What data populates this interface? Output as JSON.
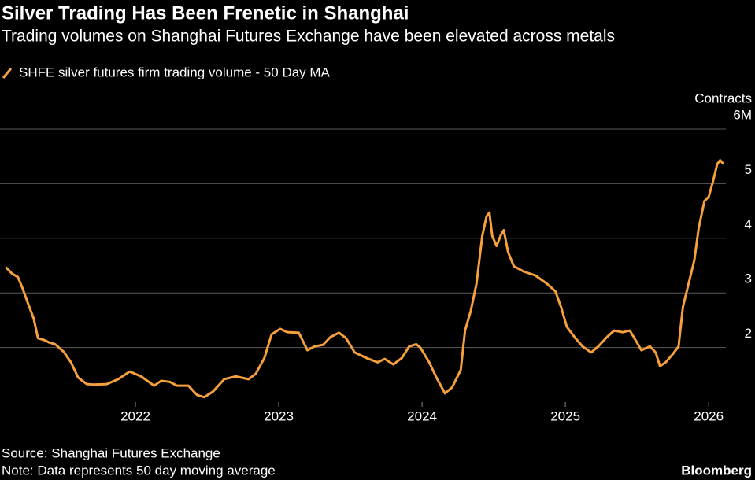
{
  "chart_data": {
    "type": "line",
    "title": "Silver Trading Has Been Frenetic in Shanghai",
    "subtitle": "Trading volumes on Shanghai Futures Exchange have been elevated across metals",
    "y_axis_label": "Contracts",
    "source": "Source: Shanghai Futures Exchange",
    "note": "Note: Data represents 50 day moving average",
    "brand": "Bloomberg",
    "x": [
      2021.1,
      2021.14,
      2021.18,
      2021.21,
      2021.25,
      2021.29,
      2021.32,
      2021.36,
      2021.4,
      2021.44,
      2021.5,
      2021.55,
      2021.6,
      2021.66,
      2021.71,
      2021.8,
      2021.88,
      2021.96,
      2022.04,
      2022.13,
      2022.18,
      2022.24,
      2022.29,
      2022.37,
      2022.43,
      2022.48,
      2022.54,
      2022.62,
      2022.7,
      2022.79,
      2022.84,
      2022.9,
      2022.95,
      2023.01,
      2023.06,
      2023.14,
      2023.2,
      2023.25,
      2023.31,
      2023.36,
      2023.42,
      2023.47,
      2023.53,
      2023.61,
      2023.69,
      2023.74,
      2023.8,
      2023.86,
      2023.91,
      2023.96,
      2023.99,
      2024.05,
      2024.1,
      2024.16,
      2024.21,
      2024.27,
      2024.3,
      2024.34,
      2024.38,
      2024.42,
      2024.45,
      2024.47,
      2024.49,
      2024.52,
      2024.55,
      2024.57,
      2024.6,
      2024.64,
      2024.71,
      2024.79,
      2024.87,
      2024.93,
      2024.97,
      2025.01,
      2025.07,
      2025.12,
      2025.18,
      2025.23,
      2025.29,
      2025.34,
      2025.4,
      2025.45,
      2025.5,
      2025.53,
      2025.59,
      2025.63,
      2025.66,
      2025.7,
      2025.75,
      2025.79,
      2025.82,
      2025.86,
      2025.9,
      2025.93,
      2025.97,
      2026.0,
      2026.03,
      2026.06,
      2026.08,
      2026.1
    ],
    "series": [
      {
        "name": "SHFE silver futures firm trading volume - 50 Day MA",
        "color": "#f5a03c",
        "values": [
          3.46,
          3.35,
          3.29,
          3.1,
          2.81,
          2.53,
          2.17,
          2.14,
          2.09,
          2.06,
          1.92,
          1.73,
          1.45,
          1.33,
          1.32,
          1.33,
          1.42,
          1.56,
          1.47,
          1.3,
          1.39,
          1.37,
          1.3,
          1.3,
          1.13,
          1.09,
          1.19,
          1.42,
          1.47,
          1.42,
          1.52,
          1.81,
          2.24,
          2.34,
          2.28,
          2.27,
          1.95,
          2.02,
          2.05,
          2.19,
          2.27,
          2.17,
          1.91,
          1.81,
          1.73,
          1.79,
          1.69,
          1.81,
          2.02,
          2.06,
          1.99,
          1.73,
          1.45,
          1.16,
          1.27,
          1.59,
          2.31,
          2.67,
          3.17,
          4.04,
          4.4,
          4.47,
          4.04,
          3.86,
          4.06,
          4.15,
          3.75,
          3.49,
          3.39,
          3.32,
          3.17,
          3.03,
          2.74,
          2.38,
          2.17,
          2.02,
          1.91,
          2.02,
          2.19,
          2.31,
          2.28,
          2.31,
          2.09,
          1.95,
          2.02,
          1.91,
          1.66,
          1.73,
          1.88,
          2.02,
          2.74,
          3.17,
          3.6,
          4.18,
          4.68,
          4.76,
          5.04,
          5.36,
          5.43,
          5.37
        ]
      }
    ],
    "xlim": [
      2021.055,
      2026.12
    ],
    "xticks": [
      2022,
      2023,
      2024,
      2025,
      2026
    ],
    "ylim": [
      1,
      6
    ],
    "yticks": [
      2,
      3,
      4,
      5,
      {
        "value": 6,
        "label": "6M"
      }
    ],
    "grid": true
  }
}
